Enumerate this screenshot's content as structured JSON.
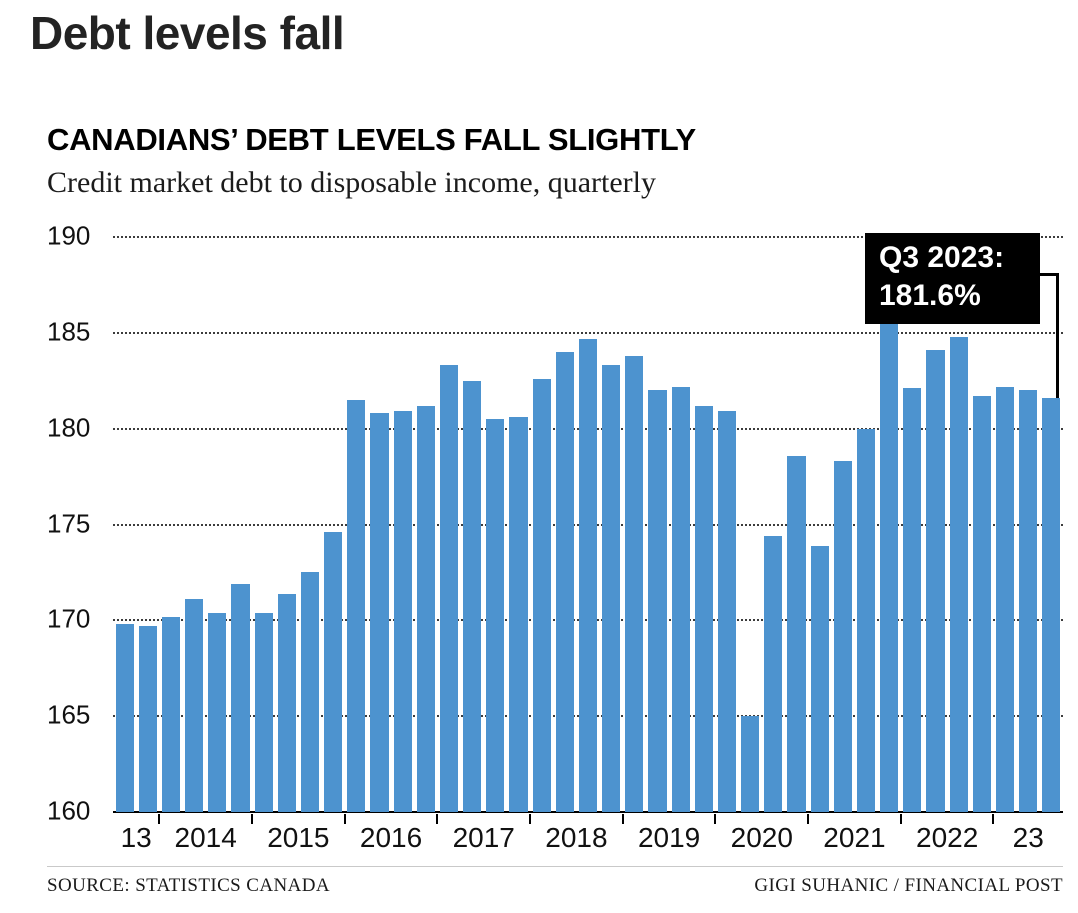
{
  "page": {
    "title": "Debt levels fall",
    "source": "SOURCE: STATISTICS CANADA",
    "credit": "GIGI SUHANIC / FINANCIAL POST"
  },
  "annotation": {
    "line1": "Q3 2023:",
    "line2": "181.6%"
  },
  "colors": {
    "bar": "#4d93cf",
    "annotation_bg": "#000000",
    "annotation_text": "#ffffff"
  },
  "chart_data": {
    "type": "bar",
    "title": "CANADIANS’ DEBT LEVELS FALL SLIGHTLY",
    "subtitle": "Credit market debt to disposable income, quarterly",
    "ylim": [
      160,
      190
    ],
    "yticks": [
      190,
      185,
      180,
      175,
      170,
      165,
      160
    ],
    "grid": "dotted horizontal",
    "legend": "none",
    "x": [
      "2013 Q3",
      "2013 Q4",
      "2014 Q1",
      "2014 Q2",
      "2014 Q3",
      "2014 Q4",
      "2015 Q1",
      "2015 Q2",
      "2015 Q3",
      "2015 Q4",
      "2016 Q1",
      "2016 Q2",
      "2016 Q3",
      "2016 Q4",
      "2017 Q1",
      "2017 Q2",
      "2017 Q3",
      "2017 Q4",
      "2018 Q1",
      "2018 Q2",
      "2018 Q3",
      "2018 Q4",
      "2019 Q1",
      "2019 Q2",
      "2019 Q3",
      "2019 Q4",
      "2020 Q1",
      "2020 Q2",
      "2020 Q3",
      "2020 Q4",
      "2021 Q1",
      "2021 Q2",
      "2021 Q3",
      "2021 Q4",
      "2022 Q1",
      "2022 Q2",
      "2022 Q3",
      "2022 Q4",
      "2023 Q1",
      "2023 Q2",
      "2023 Q3"
    ],
    "values": [
      169.8,
      169.7,
      170.2,
      171.1,
      170.4,
      171.9,
      170.4,
      171.4,
      172.5,
      174.6,
      181.5,
      180.8,
      180.9,
      181.2,
      183.3,
      182.5,
      180.5,
      180.6,
      182.6,
      184.0,
      184.7,
      183.3,
      183.8,
      182.0,
      182.2,
      181.2,
      180.9,
      165.0,
      174.4,
      178.6,
      173.9,
      178.3,
      180.0,
      185.5,
      182.1,
      184.1,
      184.8,
      181.7,
      182.2,
      182.0,
      181.6
    ],
    "x_groups": [
      {
        "label": "13",
        "start": 0,
        "end": 1
      },
      {
        "label": "2014",
        "start": 2,
        "end": 5
      },
      {
        "label": "2015",
        "start": 6,
        "end": 9
      },
      {
        "label": "2016",
        "start": 10,
        "end": 13
      },
      {
        "label": "2017",
        "start": 14,
        "end": 17
      },
      {
        "label": "2018",
        "start": 18,
        "end": 21
      },
      {
        "label": "2019",
        "start": 22,
        "end": 25
      },
      {
        "label": "2020",
        "start": 26,
        "end": 29
      },
      {
        "label": "2021",
        "start": 30,
        "end": 33
      },
      {
        "label": "2022",
        "start": 34,
        "end": 37
      },
      {
        "label": "23",
        "start": 38,
        "end": 40
      }
    ]
  }
}
